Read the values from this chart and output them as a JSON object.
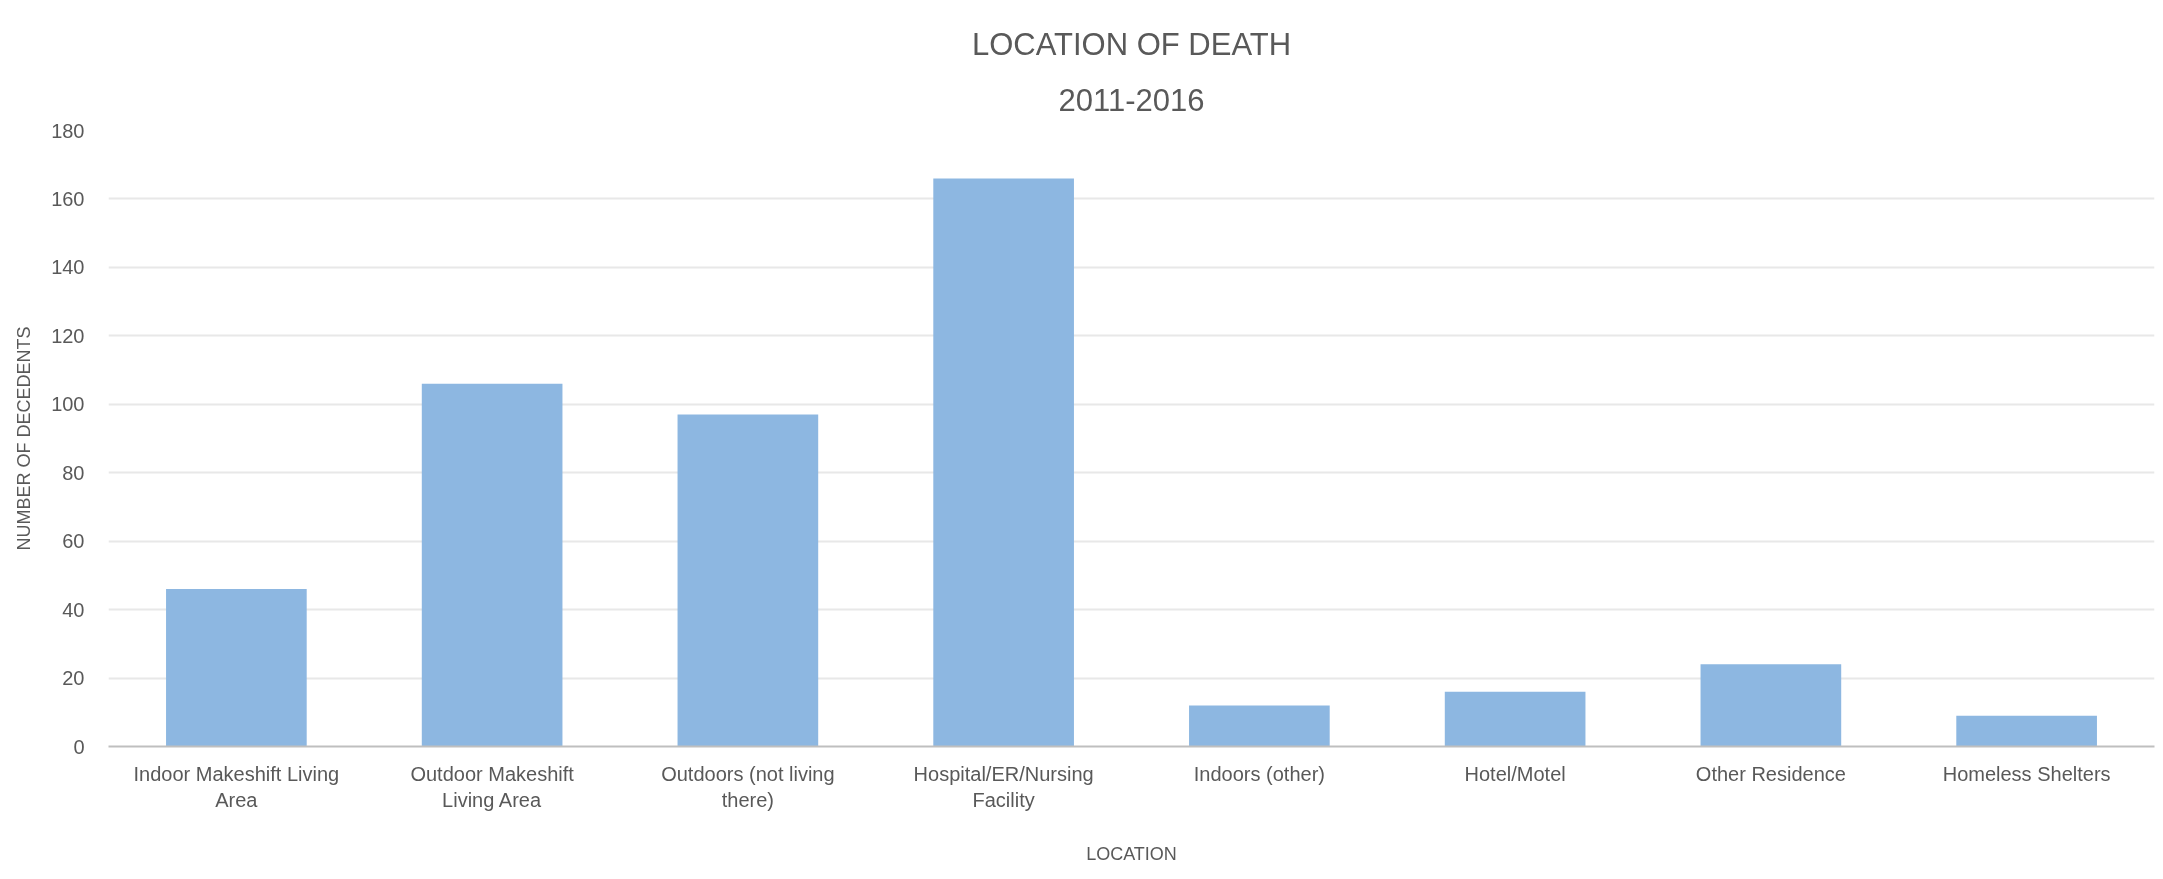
{
  "chart_data": {
    "type": "bar",
    "title": "LOCATION OF DEATH",
    "subtitle": "2011-2016",
    "xlabel": "LOCATION",
    "ylabel": "NUMBER OF DECEDENTS",
    "categories": [
      "Indoor Makeshift Living Area",
      "Outdoor Makeshift Living Area",
      "Outdoors (not living there)",
      "Hospital/ER/Nursing Facility",
      "Indoors (other)",
      "Hotel/Motel",
      "Other Residence",
      "Homeless Shelters"
    ],
    "values": [
      46,
      106,
      97,
      166,
      12,
      16,
      24,
      9
    ],
    "color": "#8db7e1",
    "ylim": [
      0,
      180
    ],
    "yticks": [
      0,
      20,
      40,
      60,
      80,
      100,
      120,
      140,
      160,
      180
    ],
    "grid": "y"
  }
}
